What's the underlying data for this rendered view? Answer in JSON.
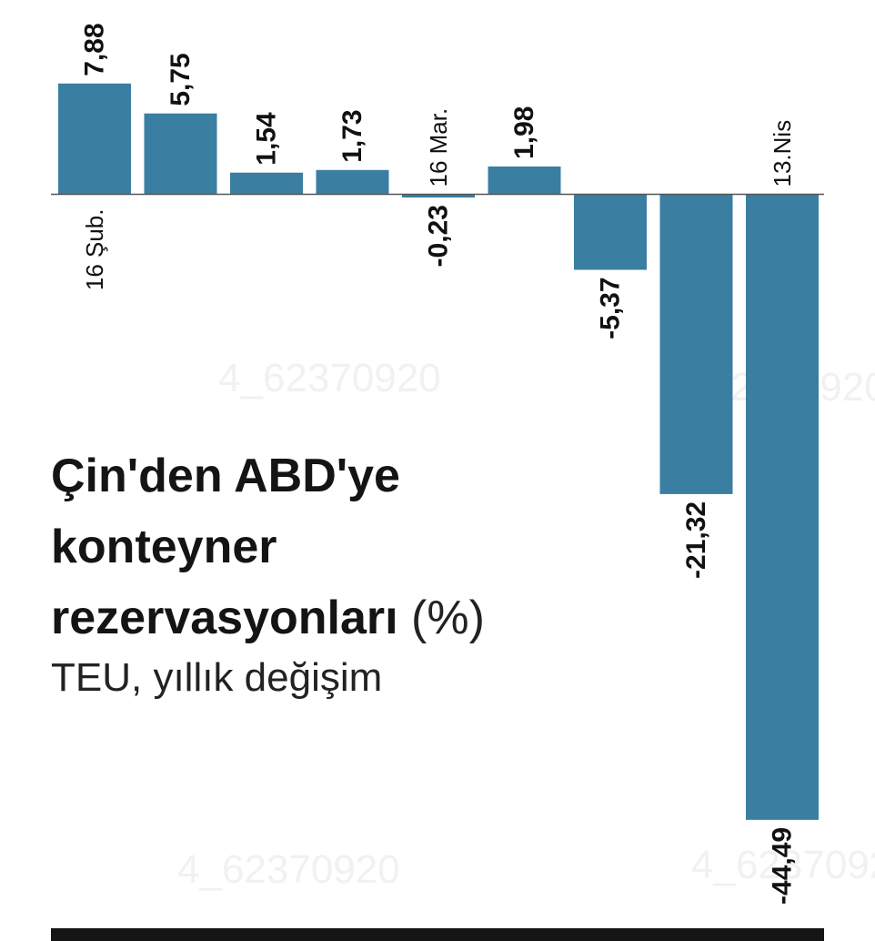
{
  "title": "Çin'den ABD'ye konteyner rezervasyonları",
  "unit": "(%)",
  "subtitle": "TEU, yıllık değişim",
  "watermark": "4_62370920",
  "colors": {
    "bar": "#3a7ea2",
    "text": "#111111",
    "rule": "#151515"
  },
  "chart_data": {
    "type": "bar",
    "orientation": "vertical",
    "categories": [
      "16 Şub.",
      "",
      "",
      "",
      "16 Mar.",
      "",
      "",
      "",
      "13.Nis"
    ],
    "values": [
      7.88,
      5.75,
      1.54,
      1.73,
      -0.23,
      1.98,
      -5.37,
      -21.32,
      -44.49
    ],
    "value_labels": [
      "7,88",
      "5,75",
      "1,54",
      "1,73",
      "-0,23",
      "1,98",
      "-5,37",
      "-21,32",
      "-44,49"
    ],
    "ylim": [
      -48,
      10
    ],
    "grid": false,
    "legend": "none"
  }
}
